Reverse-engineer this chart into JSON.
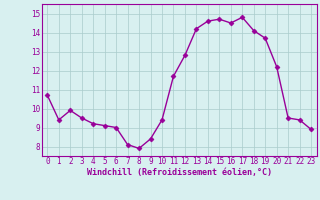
{
  "x": [
    0,
    1,
    2,
    3,
    4,
    5,
    6,
    7,
    8,
    9,
    10,
    11,
    12,
    13,
    14,
    15,
    16,
    17,
    18,
    19,
    20,
    21,
    22,
    23
  ],
  "y": [
    10.7,
    9.4,
    9.9,
    9.5,
    9.2,
    9.1,
    9.0,
    8.1,
    7.9,
    8.4,
    9.4,
    11.7,
    12.8,
    14.2,
    14.6,
    14.7,
    14.5,
    14.8,
    14.1,
    13.7,
    12.2,
    9.5,
    9.4,
    8.9
  ],
  "line_color": "#990099",
  "marker": "D",
  "marker_size": 2.5,
  "background_color": "#d8f0f0",
  "grid_color": "#aacccc",
  "xlabel": "Windchill (Refroidissement éolien,°C)",
  "xlabel_color": "#990099",
  "tick_color": "#990099",
  "ylim": [
    7.5,
    15.5
  ],
  "xlim": [
    -0.5,
    23.5
  ],
  "yticks": [
    8,
    9,
    10,
    11,
    12,
    13,
    14,
    15
  ],
  "xticks": [
    0,
    1,
    2,
    3,
    4,
    5,
    6,
    7,
    8,
    9,
    10,
    11,
    12,
    13,
    14,
    15,
    16,
    17,
    18,
    19,
    20,
    21,
    22,
    23
  ],
  "tick_fontsize": 5.5,
  "xlabel_fontsize": 6.0,
  "linewidth": 1.0
}
